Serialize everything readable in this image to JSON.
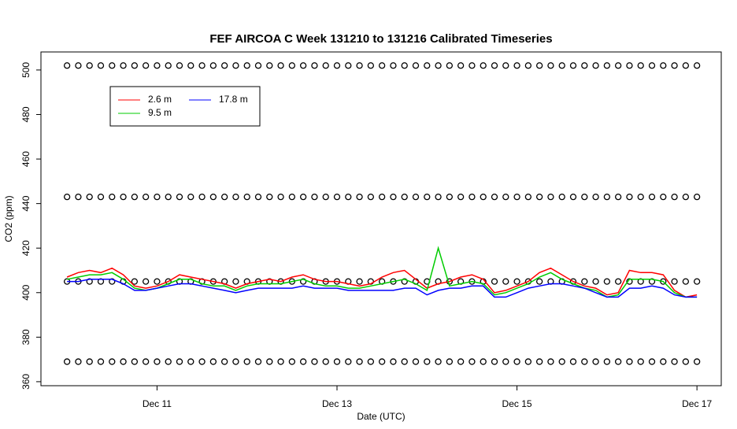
{
  "chart_data": {
    "type": "line",
    "title": "FEF AIRCOA C  Week 131210 to 131216  Calibrated Timeseries",
    "xlabel": "Date (UTC)",
    "ylabel": "CO2 (ppm)",
    "xlim": [
      9.71,
      17.27
    ],
    "ylim": [
      358.2,
      508.1
    ],
    "xticks": [
      {
        "value": 11,
        "label": "Dec 11"
      },
      {
        "value": 13,
        "label": "Dec 13"
      },
      {
        "value": 15,
        "label": "Dec 15"
      },
      {
        "value": 17,
        "label": "Dec 17"
      }
    ],
    "yticks": [
      360,
      380,
      400,
      420,
      440,
      460,
      480,
      500
    ],
    "legend": "topleft",
    "x": [
      10,
      10.125,
      10.25,
      10.375,
      10.5,
      10.625,
      10.75,
      10.875,
      11,
      11.125,
      11.25,
      11.375,
      11.5,
      11.625,
      11.75,
      11.875,
      12,
      12.125,
      12.25,
      12.375,
      12.5,
      12.625,
      12.75,
      12.875,
      13,
      13.125,
      13.25,
      13.375,
      13.5,
      13.625,
      13.75,
      13.875,
      14,
      14.125,
      14.25,
      14.375,
      14.5,
      14.625,
      14.75,
      14.875,
      15,
      15.125,
      15.25,
      15.375,
      15.5,
      15.625,
      15.75,
      15.875,
      16,
      16.125,
      16.25,
      16.375,
      16.5,
      16.625,
      16.75,
      16.875,
      17
    ],
    "series": [
      {
        "type": "scatter",
        "color": "#000000",
        "values": [
          502,
          502,
          502,
          502,
          502,
          502,
          502,
          502,
          502,
          502,
          502,
          502,
          502,
          502,
          502,
          502,
          502,
          502,
          502,
          502,
          502,
          502,
          502,
          502,
          502,
          502,
          502,
          502,
          502,
          502,
          502,
          502,
          502,
          502,
          502,
          502,
          502,
          502,
          502,
          502,
          502,
          502,
          502,
          502,
          502,
          502,
          502,
          502,
          502,
          502,
          502,
          502,
          502,
          502,
          502,
          502,
          502
        ]
      },
      {
        "type": "scatter",
        "color": "#000000",
        "values": [
          443,
          443,
          443,
          443,
          443,
          443,
          443,
          443,
          443,
          443,
          443,
          443,
          443,
          443,
          443,
          443,
          443,
          443,
          443,
          443,
          443,
          443,
          443,
          443,
          443,
          443,
          443,
          443,
          443,
          443,
          443,
          443,
          443,
          443,
          443,
          443,
          443,
          443,
          443,
          443,
          443,
          443,
          443,
          443,
          443,
          443,
          443,
          443,
          443,
          443,
          443,
          443,
          443,
          443,
          443,
          443,
          443
        ]
      },
      {
        "type": "scatter",
        "color": "#000000",
        "values": [
          405,
          405,
          405,
          405,
          405,
          405,
          405,
          405,
          405,
          405,
          405,
          405,
          405,
          405,
          405,
          405,
          405,
          405,
          405,
          405,
          405,
          405,
          405,
          405,
          405,
          405,
          405,
          405,
          405,
          405,
          405,
          405,
          405,
          405,
          405,
          405,
          405,
          405,
          405,
          405,
          405,
          405,
          405,
          405,
          405,
          405,
          405,
          405,
          405,
          405,
          405,
          405,
          405,
          405,
          405,
          405,
          405
        ]
      },
      {
        "type": "scatter",
        "color": "#000000",
        "values": [
          369,
          369,
          369,
          369,
          369,
          369,
          369,
          369,
          369,
          369,
          369,
          369,
          369,
          369,
          369,
          369,
          369,
          369,
          369,
          369,
          369,
          369,
          369,
          369,
          369,
          369,
          369,
          369,
          369,
          369,
          369,
          369,
          369,
          369,
          369,
          369,
          369,
          369,
          369,
          369,
          369,
          369,
          369,
          369,
          369,
          369,
          369,
          369,
          369,
          369,
          369,
          369,
          369,
          369,
          369,
          369,
          369
        ]
      },
      {
        "type": "line",
        "name": "2.6 m",
        "color": "#ff0000",
        "values": [
          407,
          409,
          410,
          409,
          411,
          408,
          403,
          402,
          403,
          405,
          408,
          407,
          406,
          405,
          404,
          402,
          404,
          405,
          406,
          405,
          407,
          408,
          406,
          405,
          405,
          404,
          403,
          404,
          407,
          409,
          410,
          406,
          402,
          404,
          405,
          407,
          408,
          406,
          400,
          401,
          403,
          405,
          409,
          411,
          408,
          405,
          403,
          402,
          399,
          400,
          410,
          409,
          409,
          408,
          401,
          398,
          399
        ]
      },
      {
        "type": "line",
        "name": "9.5 m",
        "color": "#00cc00",
        "values": [
          406,
          407,
          408,
          408,
          409,
          406,
          402,
          401,
          402,
          404,
          406,
          406,
          404,
          403,
          403,
          401,
          403,
          404,
          404,
          404,
          405,
          406,
          404,
          403,
          403,
          402,
          402,
          403,
          404,
          405,
          406,
          404,
          401,
          420,
          403,
          404,
          405,
          404,
          399,
          400,
          402,
          404,
          407,
          409,
          406,
          404,
          402,
          401,
          398,
          399,
          406,
          406,
          406,
          405,
          400,
          398,
          398
        ]
      },
      {
        "type": "line",
        "name": "17.8 m",
        "color": "#0000ff",
        "values": [
          405,
          405,
          406,
          406,
          406,
          404,
          401,
          401,
          402,
          403,
          404,
          404,
          403,
          402,
          401,
          400,
          401,
          402,
          402,
          402,
          402,
          403,
          402,
          402,
          402,
          401,
          401,
          401,
          401,
          401,
          402,
          402,
          399,
          401,
          402,
          402,
          403,
          403,
          398,
          398,
          400,
          402,
          403,
          404,
          404,
          403,
          402,
          400,
          398,
          398,
          402,
          402,
          403,
          402,
          399,
          398,
          398
        ]
      }
    ]
  }
}
